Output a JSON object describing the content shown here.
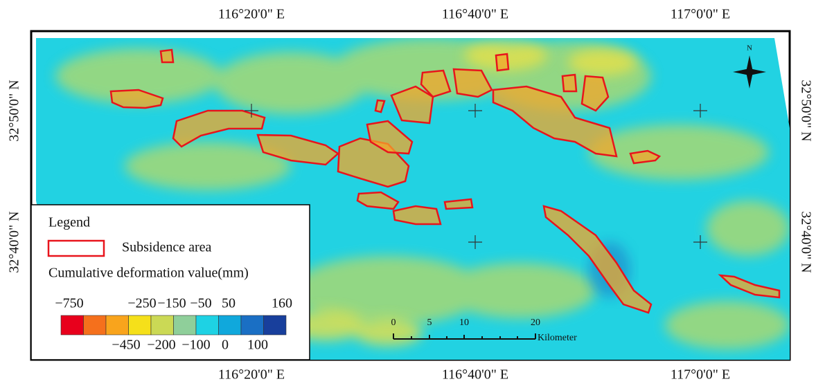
{
  "map": {
    "top_labels": [
      "116°20'0\" E",
      "116°40'0\" E",
      "117°0'0\" E"
    ],
    "bottom_labels": [
      "116°20'0\" E",
      "116°40'0\" E",
      "117°0'0\" E"
    ],
    "left_labels": [
      "32°50'0\" N",
      "32°40'0\" N"
    ],
    "right_labels": [
      "32°50'0\" N",
      "32°40'0\" N"
    ],
    "north": "N",
    "legend": {
      "title": "Legend",
      "subsidence": "Subsidence area",
      "colorbar_title": "Cumulative deformation value(mm)",
      "top_labels": [
        "−750",
        "−250",
        "−150",
        "−50",
        "50",
        "160"
      ],
      "bottom_labels": [
        "−450",
        "−200",
        "−100",
        "0",
        "100"
      ],
      "colors": [
        "#e8001c",
        "#f5701c",
        "#f9a41c",
        "#f5e01a",
        "#cbd955",
        "#8fcf9a",
        "#1ed2e4",
        "#10a8dc",
        "#1a6fc4",
        "#183f9c"
      ]
    },
    "scale": {
      "labels": [
        "0",
        "5",
        "10",
        "20"
      ],
      "unit": "Kilometer"
    }
  }
}
